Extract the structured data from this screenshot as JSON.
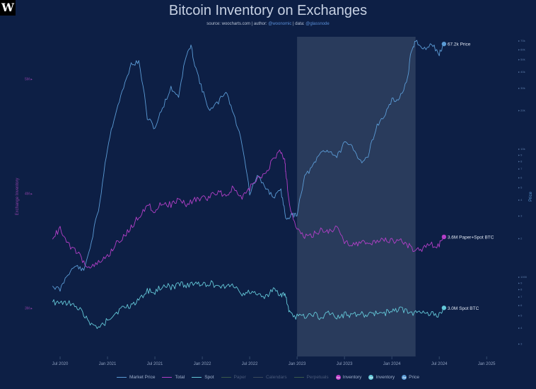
{
  "logo": "W",
  "header": {
    "title": "Bitcoin Inventory on Exchanges",
    "source_prefix": "source: ",
    "source_site": "woocharts.com",
    "author_prefix": " | author: ",
    "author": "@woonomic",
    "data_prefix": " | data: ",
    "data_source": "@glassnode"
  },
  "chart_data": {
    "type": "line",
    "title": "Bitcoin Inventory on Exchanges",
    "xlabel": "",
    "ylabel_left": "Exchange Inventory",
    "ylabel_right": "Price",
    "x_ticks": [
      "Jul 2020",
      "Jan 2021",
      "Jul 2021",
      "Jan 2022",
      "Jul 2022",
      "Jan 2023",
      "Jul 2023",
      "Jan 2024",
      "Jul 2024",
      "Jan 2025"
    ],
    "x_tick_dates": [
      2020.5,
      2021.0,
      2021.5,
      2022.0,
      2022.5,
      2023.0,
      2023.5,
      2024.0,
      2024.5,
      2025.0
    ],
    "xlim": [
      2020.0,
      2025.2
    ],
    "left_ticks": [
      "5M",
      "4M",
      "3M"
    ],
    "left_tick_values": [
      5.0,
      4.0,
      3.0
    ],
    "left_ylim": [
      2.6,
      5.35
    ],
    "right_ticks": [
      "70k",
      "60k",
      "50k",
      "40k",
      "30k",
      "20k",
      "10k",
      "9",
      "8",
      "7",
      "6",
      "5",
      "4",
      "3",
      "2",
      "1000",
      "9",
      "8",
      "7",
      "6",
      "5",
      "4",
      "3"
    ],
    "shaded_region": [
      2023.0,
      2024.25
    ],
    "series": [
      {
        "name": "Market Price",
        "key": "price",
        "color": "#5b9bd5",
        "end_label": "67.2k Price",
        "end_value": 67200,
        "points": [
          [
            2020.42,
            9500
          ],
          [
            2020.5,
            9200
          ],
          [
            2020.58,
            10500
          ],
          [
            2020.67,
            11200
          ],
          [
            2020.75,
            10700
          ],
          [
            2020.83,
            13500
          ],
          [
            2020.92,
            18500
          ],
          [
            2021.0,
            29000
          ],
          [
            2021.08,
            38000
          ],
          [
            2021.17,
            47000
          ],
          [
            2021.25,
            57000
          ],
          [
            2021.33,
            58000
          ],
          [
            2021.42,
            37000
          ],
          [
            2021.5,
            34000
          ],
          [
            2021.58,
            40000
          ],
          [
            2021.67,
            47000
          ],
          [
            2021.75,
            44000
          ],
          [
            2021.83,
            61000
          ],
          [
            2021.88,
            66000
          ],
          [
            2021.92,
            57000
          ],
          [
            2022.0,
            46000
          ],
          [
            2022.08,
            39000
          ],
          [
            2022.17,
            42000
          ],
          [
            2022.25,
            46000
          ],
          [
            2022.33,
            38000
          ],
          [
            2022.42,
            30000
          ],
          [
            2022.5,
            20000
          ],
          [
            2022.58,
            23000
          ],
          [
            2022.67,
            21000
          ],
          [
            2022.75,
            19500
          ],
          [
            2022.83,
            20500
          ],
          [
            2022.88,
            16500
          ],
          [
            2022.95,
            16800
          ],
          [
            2023.0,
            17000
          ],
          [
            2023.08,
            23000
          ],
          [
            2023.17,
            25000
          ],
          [
            2023.25,
            28000
          ],
          [
            2023.33,
            28500
          ],
          [
            2023.42,
            27000
          ],
          [
            2023.5,
            30000
          ],
          [
            2023.58,
            29500
          ],
          [
            2023.67,
            26000
          ],
          [
            2023.75,
            27000
          ],
          [
            2023.83,
            34000
          ],
          [
            2023.92,
            37500
          ],
          [
            2024.0,
            42500
          ],
          [
            2024.08,
            43000
          ],
          [
            2024.17,
            51000
          ],
          [
            2024.2,
            62000
          ],
          [
            2024.25,
            69000
          ],
          [
            2024.33,
            64000
          ],
          [
            2024.42,
            67000
          ],
          [
            2024.5,
            62000
          ],
          [
            2024.55,
            67200
          ]
        ]
      },
      {
        "name": "Total",
        "key": "total",
        "color": "#b33fc8",
        "end_label": "3.6M Paper+Spot BTC",
        "end_value": 3.6,
        "points": [
          [
            2020.42,
            3.6
          ],
          [
            2020.5,
            3.7
          ],
          [
            2020.58,
            3.55
          ],
          [
            2020.67,
            3.5
          ],
          [
            2020.75,
            3.4
          ],
          [
            2020.83,
            3.35
          ],
          [
            2020.92,
            3.4
          ],
          [
            2021.0,
            3.45
          ],
          [
            2021.08,
            3.55
          ],
          [
            2021.17,
            3.62
          ],
          [
            2021.25,
            3.7
          ],
          [
            2021.33,
            3.8
          ],
          [
            2021.42,
            3.9
          ],
          [
            2021.5,
            3.85
          ],
          [
            2021.58,
            3.92
          ],
          [
            2021.67,
            3.9
          ],
          [
            2021.75,
            3.95
          ],
          [
            2021.83,
            3.9
          ],
          [
            2021.92,
            3.95
          ],
          [
            2022.0,
            3.95
          ],
          [
            2022.08,
            3.97
          ],
          [
            2022.17,
            4.02
          ],
          [
            2022.25,
            3.98
          ],
          [
            2022.33,
            4.05
          ],
          [
            2022.42,
            3.95
          ],
          [
            2022.5,
            4.05
          ],
          [
            2022.58,
            4.12
          ],
          [
            2022.67,
            4.18
          ],
          [
            2022.75,
            4.3
          ],
          [
            2022.83,
            4.37
          ],
          [
            2022.87,
            4.3
          ],
          [
            2022.88,
            4.2
          ],
          [
            2022.92,
            3.9
          ],
          [
            2023.0,
            3.68
          ],
          [
            2023.08,
            3.62
          ],
          [
            2023.17,
            3.64
          ],
          [
            2023.25,
            3.68
          ],
          [
            2023.33,
            3.67
          ],
          [
            2023.42,
            3.7
          ],
          [
            2023.5,
            3.58
          ],
          [
            2023.58,
            3.56
          ],
          [
            2023.67,
            3.57
          ],
          [
            2023.75,
            3.56
          ],
          [
            2023.83,
            3.58
          ],
          [
            2023.92,
            3.6
          ],
          [
            2024.0,
            3.58
          ],
          [
            2024.08,
            3.6
          ],
          [
            2024.17,
            3.55
          ],
          [
            2024.25,
            3.5
          ],
          [
            2024.33,
            3.52
          ],
          [
            2024.42,
            3.55
          ],
          [
            2024.5,
            3.55
          ],
          [
            2024.55,
            3.62
          ]
        ]
      },
      {
        "name": "Spot",
        "key": "spot",
        "color": "#64c8d8",
        "end_label": "3.0M Spot BTC",
        "end_value": 3.0,
        "points": [
          [
            2020.42,
            3.05
          ],
          [
            2020.5,
            3.03
          ],
          [
            2020.58,
            3.05
          ],
          [
            2020.67,
            3.0
          ],
          [
            2020.75,
            2.95
          ],
          [
            2020.83,
            2.85
          ],
          [
            2020.92,
            2.82
          ],
          [
            2021.0,
            2.9
          ],
          [
            2021.08,
            2.95
          ],
          [
            2021.17,
            3.0
          ],
          [
            2021.25,
            3.02
          ],
          [
            2021.33,
            3.08
          ],
          [
            2021.42,
            3.15
          ],
          [
            2021.5,
            3.13
          ],
          [
            2021.58,
            3.2
          ],
          [
            2021.67,
            3.18
          ],
          [
            2021.75,
            3.2
          ],
          [
            2021.83,
            3.2
          ],
          [
            2021.92,
            3.22
          ],
          [
            2022.0,
            3.2
          ],
          [
            2022.08,
            3.22
          ],
          [
            2022.17,
            3.18
          ],
          [
            2022.25,
            3.2
          ],
          [
            2022.33,
            3.2
          ],
          [
            2022.42,
            3.12
          ],
          [
            2022.5,
            3.15
          ],
          [
            2022.58,
            3.12
          ],
          [
            2022.67,
            3.1
          ],
          [
            2022.75,
            3.15
          ],
          [
            2022.83,
            3.12
          ],
          [
            2022.88,
            3.1
          ],
          [
            2022.92,
            2.95
          ],
          [
            2023.0,
            2.92
          ],
          [
            2023.08,
            2.93
          ],
          [
            2023.17,
            2.95
          ],
          [
            2023.25,
            2.92
          ],
          [
            2023.33,
            2.95
          ],
          [
            2023.42,
            2.92
          ],
          [
            2023.5,
            2.94
          ],
          [
            2023.58,
            2.93
          ],
          [
            2023.67,
            2.95
          ],
          [
            2023.75,
            2.94
          ],
          [
            2023.83,
            2.96
          ],
          [
            2023.92,
            2.95
          ],
          [
            2024.0,
            2.98
          ],
          [
            2024.08,
            2.99
          ],
          [
            2024.17,
            2.97
          ],
          [
            2024.25,
            2.95
          ],
          [
            2024.33,
            2.95
          ],
          [
            2024.42,
            2.96
          ],
          [
            2024.5,
            2.94
          ],
          [
            2024.55,
            3.0
          ]
        ]
      }
    ]
  },
  "legend": [
    {
      "key": "market",
      "label": "Market Price",
      "type": "line",
      "color": "#5b9bd5",
      "enabled": true
    },
    {
      "key": "total",
      "label": "Total",
      "type": "line",
      "color": "#b33fc8",
      "enabled": true
    },
    {
      "key": "spot",
      "label": "Spot",
      "type": "line",
      "color": "#64c8d8",
      "enabled": true
    },
    {
      "key": "paper",
      "label": "Paper",
      "type": "line",
      "color": "#3a5a4a",
      "enabled": false
    },
    {
      "key": "calendars",
      "label": "Calendars",
      "type": "line",
      "color": "#3a4a5a",
      "enabled": false
    },
    {
      "key": "perpetuals",
      "label": "Perpetuals",
      "type": "line",
      "color": "#3a5a4a",
      "enabled": false
    },
    {
      "key": "aa_inventory_1",
      "label": "Inventory",
      "type": "dot",
      "glyph": "Aa",
      "color": "#c13fc9",
      "enabled": true
    },
    {
      "key": "aa_inventory_2",
      "label": "Inventory",
      "type": "dot",
      "glyph": "Aa",
      "color": "#64c8d8",
      "enabled": true
    },
    {
      "key": "aa_price",
      "label": "Price",
      "type": "dot",
      "glyph": "Aa",
      "color": "#5b9bd5",
      "enabled": true
    }
  ]
}
